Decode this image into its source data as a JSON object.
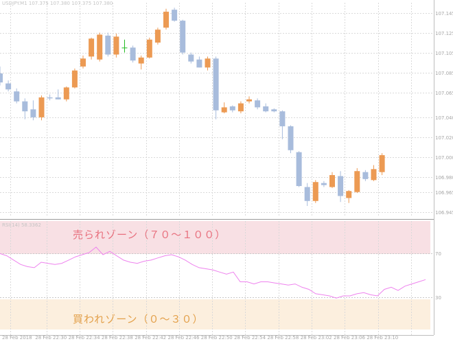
{
  "price_panel": {
    "header": "USDJPY.M1  107.375 107.380 107.375 107.380"
  },
  "rsi_panel": {
    "header": "RSI(14) 58.3362",
    "overbought_level": 70,
    "oversold_level": 30,
    "overbought_label": "売られゾーン（７０～１００）",
    "oversold_label": "買われゾーン（０～３０）",
    "overbought_color": "#f3c7cd",
    "oversold_color": "#fbead3"
  },
  "colors": {
    "bull": "#ec9a53",
    "bear": "#a8bcdc",
    "doji": "#22bb22",
    "rsi_line": "#ee82ee",
    "grid": "#d9d9d9"
  },
  "chart_data": [
    {
      "type": "candlestick",
      "symbol": "USDJPY",
      "timeframe": "M1",
      "ylim": [
        106.94,
        107.155
      ],
      "y_ticks": [
        107.145,
        107.125,
        107.105,
        107.085,
        107.065,
        107.04,
        107.02,
        107.0,
        106.98,
        106.965,
        106.945
      ],
      "y_tick_labels": [
        "107.145",
        "107.125",
        "107.105",
        "107.085",
        "107.065",
        "107.040",
        "107.020",
        "107.000",
        "106.980",
        "106.965",
        "106.945"
      ],
      "x_tick_labels": [
        "28 Feb 2018",
        "28 Feb 22:30",
        "28 Feb 22:34",
        "28 Feb 22:38",
        "28 Feb 22:42",
        "28 Feb 22:46",
        "28 Feb 22:50",
        "28 Feb 22:54",
        "28 Feb 22:58",
        "28 Feb 23:02",
        "28 Feb 23:06",
        "28 Feb 23:10"
      ],
      "candles": [
        {
          "o": 107.084,
          "h": 107.091,
          "l": 107.072,
          "c": 107.075
        },
        {
          "o": 107.074,
          "h": 107.077,
          "l": 107.066,
          "c": 107.068
        },
        {
          "o": 107.066,
          "h": 107.069,
          "l": 107.054,
          "c": 107.056
        },
        {
          "o": 107.056,
          "h": 107.059,
          "l": 107.038,
          "c": 107.046
        },
        {
          "o": 107.048,
          "h": 107.057,
          "l": 107.037,
          "c": 107.04
        },
        {
          "o": 107.04,
          "h": 107.062,
          "l": 107.037,
          "c": 107.06
        },
        {
          "o": 107.06,
          "h": 107.063,
          "l": 107.057,
          "c": 107.059
        },
        {
          "o": 107.06,
          "h": 107.068,
          "l": 107.058,
          "c": 107.058
        },
        {
          "o": 107.058,
          "h": 107.071,
          "l": 107.056,
          "c": 107.07
        },
        {
          "o": 107.07,
          "h": 107.089,
          "l": 107.069,
          "c": 107.087
        },
        {
          "o": 107.091,
          "h": 107.102,
          "l": 107.089,
          "c": 107.099
        },
        {
          "o": 107.101,
          "h": 107.12,
          "l": 107.098,
          "c": 107.119
        },
        {
          "o": 107.098,
          "h": 107.125,
          "l": 107.096,
          "c": 107.123
        },
        {
          "o": 107.122,
          "h": 107.125,
          "l": 107.101,
          "c": 107.103
        },
        {
          "o": 107.103,
          "h": 107.124,
          "l": 107.1,
          "c": 107.121
        },
        {
          "o": 107.11,
          "h": 107.118,
          "l": 107.105,
          "c": 107.11
        },
        {
          "o": 107.11,
          "h": 107.112,
          "l": 107.095,
          "c": 107.097
        },
        {
          "o": 107.094,
          "h": 107.102,
          "l": 107.088,
          "c": 107.1
        },
        {
          "o": 107.1,
          "h": 107.12,
          "l": 107.099,
          "c": 107.118
        },
        {
          "o": 107.115,
          "h": 107.13,
          "l": 107.113,
          "c": 107.128
        },
        {
          "o": 107.13,
          "h": 107.149,
          "l": 107.128,
          "c": 107.146
        },
        {
          "o": 107.148,
          "h": 107.15,
          "l": 107.136,
          "c": 107.137
        },
        {
          "o": 107.137,
          "h": 107.138,
          "l": 107.103,
          "c": 107.105
        },
        {
          "o": 107.103,
          "h": 107.105,
          "l": 107.094,
          "c": 107.096
        },
        {
          "o": 107.098,
          "h": 107.101,
          "l": 107.09,
          "c": 107.09
        },
        {
          "o": 107.09,
          "h": 107.101,
          "l": 107.087,
          "c": 107.099
        },
        {
          "o": 107.099,
          "h": 107.101,
          "l": 107.038,
          "c": 107.047
        },
        {
          "o": 107.045,
          "h": 107.055,
          "l": 107.044,
          "c": 107.05
        },
        {
          "o": 107.051,
          "h": 107.052,
          "l": 107.045,
          "c": 107.047
        },
        {
          "o": 107.046,
          "h": 107.056,
          "l": 107.044,
          "c": 107.054
        },
        {
          "o": 107.056,
          "h": 107.061,
          "l": 107.054,
          "c": 107.058
        },
        {
          "o": 107.057,
          "h": 107.059,
          "l": 107.048,
          "c": 107.05
        },
        {
          "o": 107.051,
          "h": 107.054,
          "l": 107.045,
          "c": 107.046
        },
        {
          "o": 107.048,
          "h": 107.049,
          "l": 107.045,
          "c": 107.046
        },
        {
          "o": 107.046,
          "h": 107.047,
          "l": 107.018,
          "c": 107.031
        },
        {
          "o": 107.031,
          "h": 107.032,
          "l": 107.004,
          "c": 107.007
        },
        {
          "o": 107.005,
          "h": 107.006,
          "l": 106.97,
          "c": 106.971
        },
        {
          "o": 106.97,
          "h": 106.974,
          "l": 106.951,
          "c": 106.956
        },
        {
          "o": 106.956,
          "h": 106.977,
          "l": 106.954,
          "c": 106.975
        },
        {
          "o": 106.974,
          "h": 106.976,
          "l": 106.97,
          "c": 106.972
        },
        {
          "o": 106.97,
          "h": 106.985,
          "l": 106.969,
          "c": 106.982
        },
        {
          "o": 106.981,
          "h": 106.986,
          "l": 106.955,
          "c": 106.961
        },
        {
          "o": 106.959,
          "h": 106.967,
          "l": 106.954,
          "c": 106.966
        },
        {
          "o": 106.965,
          "h": 106.989,
          "l": 106.964,
          "c": 106.986
        },
        {
          "o": 106.985,
          "h": 106.987,
          "l": 106.976,
          "c": 106.978
        },
        {
          "o": 106.977,
          "h": 106.992,
          "l": 106.976,
          "c": 106.988
        },
        {
          "o": 106.985,
          "h": 107.004,
          "l": 106.982,
          "c": 107.002
        }
      ]
    },
    {
      "type": "line",
      "name": "RSI(14)",
      "ylim": [
        0,
        100
      ],
      "y_ticks": [
        70,
        30
      ],
      "y_tick_labels": [
        "70",
        "30"
      ],
      "values": [
        70,
        68,
        64,
        60,
        58,
        57,
        62,
        61,
        60,
        61,
        64,
        67,
        69,
        71,
        76,
        69,
        72,
        68,
        64,
        62,
        61,
        63,
        64,
        66,
        68,
        69,
        67,
        64,
        60,
        57,
        56,
        55,
        53,
        51,
        53,
        44,
        44,
        42,
        44,
        44,
        43,
        42,
        41,
        42,
        39,
        37,
        33,
        32,
        31,
        29,
        31,
        31,
        33,
        34,
        32,
        31,
        37,
        39,
        36,
        40,
        42,
        44,
        46
      ]
    }
  ]
}
